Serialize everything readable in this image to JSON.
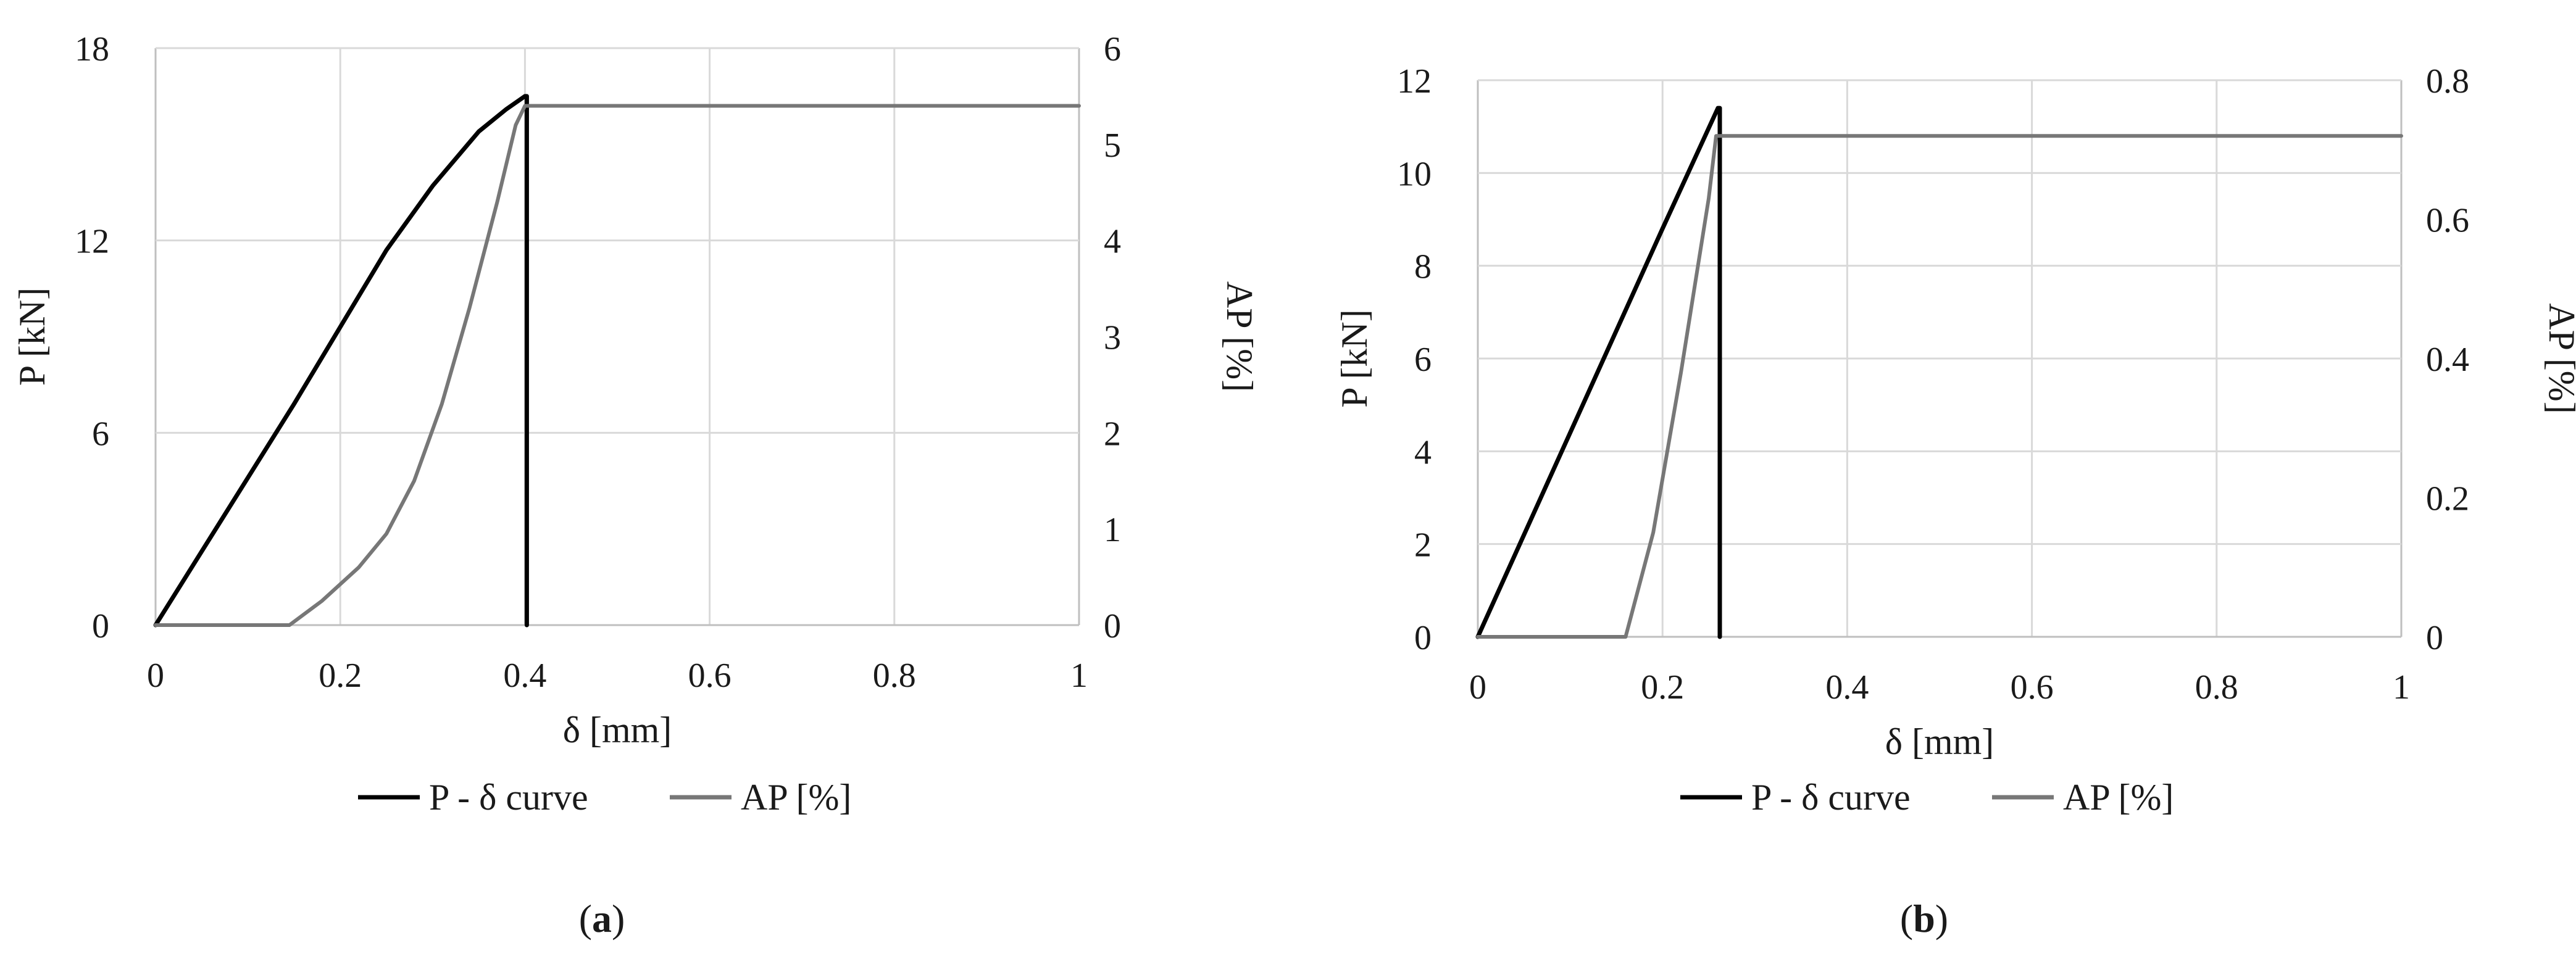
{
  "chart_data": [
    {
      "type": "line",
      "panel_label": {
        "open": "(",
        "letter": "a",
        "close": ")"
      },
      "xlabel": "δ [mm]",
      "ylabel": "P [kN]",
      "y2label": "AP [%]",
      "xlim": [
        0,
        1
      ],
      "ylim": [
        0,
        18
      ],
      "y2lim": [
        0,
        6
      ],
      "x_ticks": [
        "0",
        "0.2",
        "0.4",
        "0.6",
        "0.8",
        "1"
      ],
      "y_ticks": [
        "0",
        "6",
        "12",
        "18"
      ],
      "y2_ticks": [
        "0",
        "1",
        "2",
        "3",
        "4",
        "5",
        "6"
      ],
      "grid": true,
      "legend_position": "bottom",
      "series": [
        {
          "name": "P - δ curve",
          "axis": "left",
          "color": "#000000",
          "x": [
            0,
            0.05,
            0.1,
            0.15,
            0.2,
            0.25,
            0.3,
            0.35,
            0.38,
            0.4,
            0.402,
            0.402
          ],
          "y": [
            0,
            2.3,
            4.6,
            6.9,
            9.3,
            11.7,
            13.7,
            15.4,
            16.1,
            16.5,
            16.5,
            0
          ]
        },
        {
          "name": "AP [%]",
          "axis": "right",
          "color": "#777777",
          "x": [
            0,
            0.145,
            0.18,
            0.22,
            0.25,
            0.28,
            0.31,
            0.34,
            0.37,
            0.39,
            0.4,
            0.42,
            1
          ],
          "y": [
            0,
            0,
            0.25,
            0.6,
            0.95,
            1.5,
            2.3,
            3.3,
            4.4,
            5.2,
            5.4,
            5.4,
            5.4
          ]
        }
      ]
    },
    {
      "type": "line",
      "panel_label": {
        "open": "(",
        "letter": "b",
        "close": ")"
      },
      "xlabel": "δ [mm]",
      "ylabel": "P [kN]",
      "y2label": "AP [%]",
      "xlim": [
        0,
        1
      ],
      "ylim": [
        0,
        12
      ],
      "y2lim": [
        0,
        0.8
      ],
      "x_ticks": [
        "0",
        "0.2",
        "0.4",
        "0.6",
        "0.8",
        "1"
      ],
      "y_ticks": [
        "0",
        "2",
        "4",
        "6",
        "8",
        "10",
        "12"
      ],
      "y2_ticks": [
        "0",
        "0.2",
        "0.4",
        "0.6",
        "0.8"
      ],
      "grid": true,
      "legend_position": "bottom",
      "series": [
        {
          "name": "P - δ curve",
          "axis": "left",
          "color": "#000000",
          "x": [
            0,
            0.1,
            0.2,
            0.26,
            0.262,
            0.262
          ],
          "y": [
            0,
            4.4,
            8.8,
            11.4,
            11.4,
            0
          ]
        },
        {
          "name": "AP [%]",
          "axis": "right",
          "color": "#777777",
          "x": [
            0,
            0.16,
            0.19,
            0.22,
            0.25,
            0.258,
            0.27,
            1
          ],
          "y": [
            0,
            0,
            0.15,
            0.38,
            0.63,
            0.72,
            0.72,
            0.72
          ]
        }
      ]
    }
  ]
}
